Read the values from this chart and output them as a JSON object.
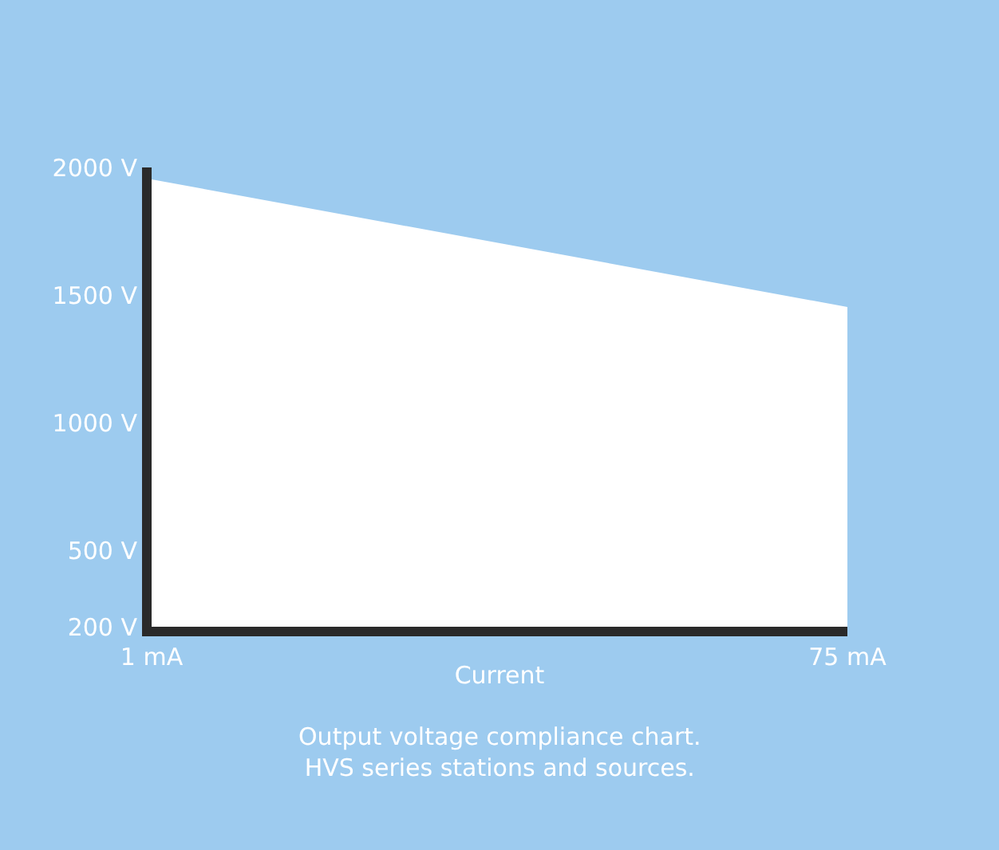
{
  "chart_data": {
    "type": "area",
    "xlabel": "Current",
    "x": [
      1,
      75
    ],
    "series": [
      {
        "color": "#ffffff",
        "values": [
          1950,
          1450
        ]
      }
    ],
    "xlim": [
      1,
      75
    ],
    "xticks": [
      {
        "value": 1,
        "label": "1 mA"
      },
      {
        "value": 75,
        "label": "75 mA"
      }
    ],
    "ylim": [
      200,
      2000
    ],
    "yticks": [
      {
        "value": 200,
        "label": "200 V"
      },
      {
        "value": 500,
        "label": "500 V"
      },
      {
        "value": 1000,
        "label": "1000 V"
      },
      {
        "value": 1500,
        "label": "1500 V"
      },
      {
        "value": 2000,
        "label": "2000 V"
      }
    ],
    "grid": false,
    "annotations": [
      "Output voltage compliance chart.\nHVS series stations and sources."
    ]
  }
}
